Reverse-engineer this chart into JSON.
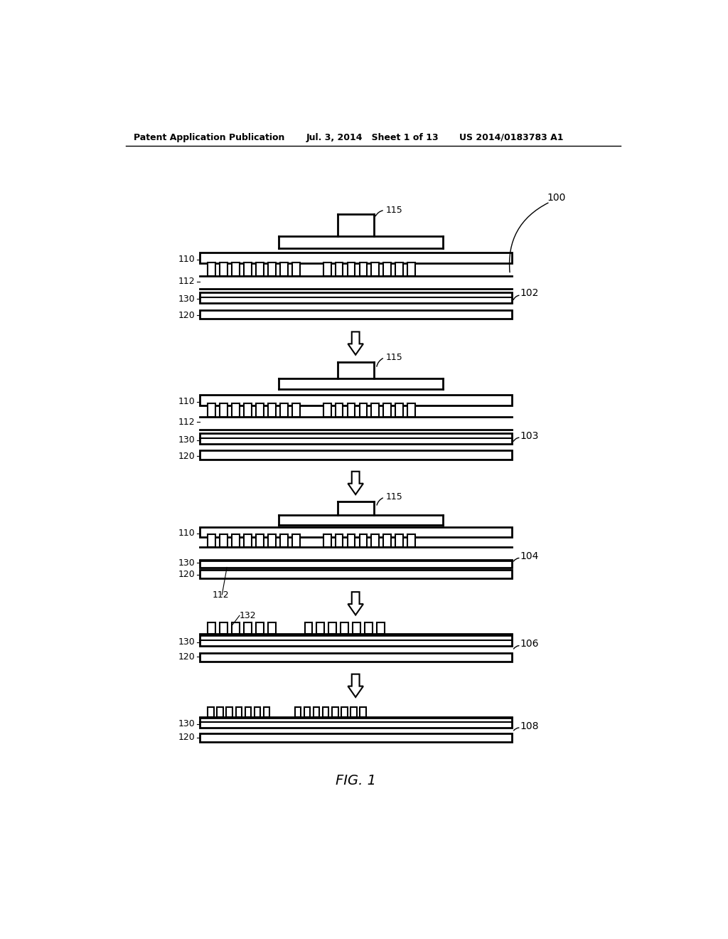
{
  "bg_color": "#ffffff",
  "line_color": "#000000",
  "header_left": "Patent Application Publication",
  "header_mid": "Jul. 3, 2014   Sheet 1 of 13",
  "header_right": "US 2014/0183783 A1",
  "fig_label": "FIG. 1"
}
